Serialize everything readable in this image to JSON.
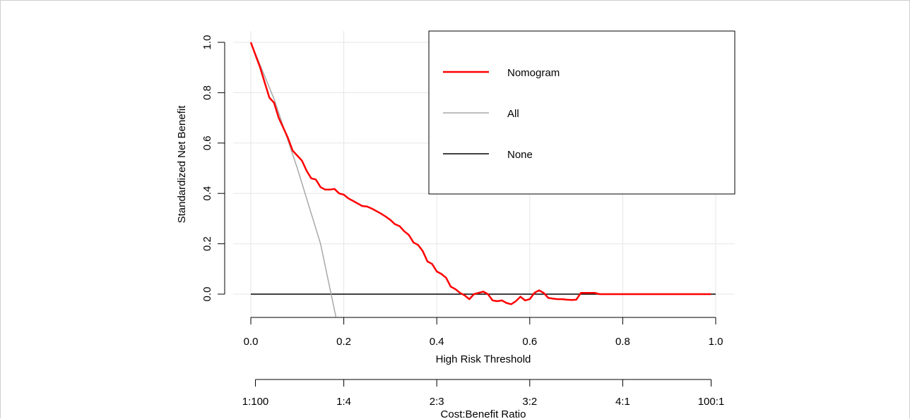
{
  "chart_data": {
    "type": "line",
    "xlabel": "High Risk Threshold",
    "ylabel": "Standardized Net Benefit",
    "xlim": [
      0,
      1
    ],
    "ylim": [
      -0.09,
      1.05
    ],
    "x_ticks": [
      "0.0",
      "0.2",
      "0.4",
      "0.6",
      "0.8",
      "1.0"
    ],
    "y_ticks": [
      "0.0",
      "0.2",
      "0.4",
      "0.6",
      "0.8",
      "1.0"
    ],
    "grid": true,
    "legend_position": "top-right",
    "secondary_xlabel": "Cost:Benefit Ratio",
    "secondary_x_ticks": [
      {
        "x": 0.0099,
        "label": "1:100"
      },
      {
        "x": 0.2,
        "label": "1:4"
      },
      {
        "x": 0.4,
        "label": "2:3"
      },
      {
        "x": 0.6,
        "label": "3:2"
      },
      {
        "x": 0.8,
        "label": "4:1"
      },
      {
        "x": 0.9901,
        "label": "100:1"
      }
    ],
    "series": [
      {
        "name": "Nomogram",
        "color": "#ff0000",
        "x": [
          0.0,
          0.01,
          0.02,
          0.03,
          0.04,
          0.05,
          0.06,
          0.07,
          0.08,
          0.09,
          0.1,
          0.11,
          0.12,
          0.13,
          0.14,
          0.15,
          0.16,
          0.17,
          0.18,
          0.19,
          0.2,
          0.21,
          0.22,
          0.23,
          0.24,
          0.25,
          0.26,
          0.27,
          0.28,
          0.29,
          0.3,
          0.31,
          0.32,
          0.33,
          0.34,
          0.35,
          0.36,
          0.37,
          0.38,
          0.39,
          0.4,
          0.41,
          0.42,
          0.43,
          0.44,
          0.45,
          0.46,
          0.47,
          0.48,
          0.49,
          0.5,
          0.51,
          0.52,
          0.53,
          0.54,
          0.55,
          0.56,
          0.57,
          0.58,
          0.59,
          0.6,
          0.61,
          0.62,
          0.63,
          0.64,
          0.65,
          0.66,
          0.67,
          0.68,
          0.69,
          0.7,
          0.71,
          0.72,
          0.73,
          0.74,
          0.75,
          0.8,
          0.85,
          0.9,
          0.95,
          0.99
        ],
        "y": [
          1.0,
          0.95,
          0.9,
          0.84,
          0.78,
          0.76,
          0.7,
          0.66,
          0.62,
          0.57,
          0.55,
          0.53,
          0.49,
          0.46,
          0.455,
          0.425,
          0.415,
          0.415,
          0.418,
          0.4,
          0.395,
          0.38,
          0.37,
          0.36,
          0.35,
          0.348,
          0.34,
          0.33,
          0.32,
          0.308,
          0.295,
          0.278,
          0.27,
          0.25,
          0.235,
          0.205,
          0.195,
          0.17,
          0.13,
          0.12,
          0.09,
          0.08,
          0.065,
          0.03,
          0.02,
          0.005,
          -0.005,
          -0.02,
          0.0,
          0.005,
          0.01,
          0.0,
          -0.025,
          -0.028,
          -0.025,
          -0.035,
          -0.04,
          -0.028,
          -0.01,
          -0.025,
          -0.02,
          0.005,
          0.015,
          0.005,
          -0.015,
          -0.018,
          -0.02,
          -0.02,
          -0.022,
          -0.023,
          -0.022,
          0.005,
          0.005,
          0.005,
          0.005,
          0.0,
          0.0,
          0.0,
          0.0,
          0.0,
          0.0
        ]
      },
      {
        "name": "All",
        "color": "#a8a8a8",
        "x": [
          0.0,
          0.05,
          0.1,
          0.15,
          0.183
        ],
        "y": [
          1.0,
          0.775,
          0.5,
          0.2,
          -0.09
        ]
      },
      {
        "name": "None",
        "color": "#000000",
        "x": [
          0.0,
          1.0
        ],
        "y": [
          0.0,
          0.0
        ]
      }
    ]
  }
}
